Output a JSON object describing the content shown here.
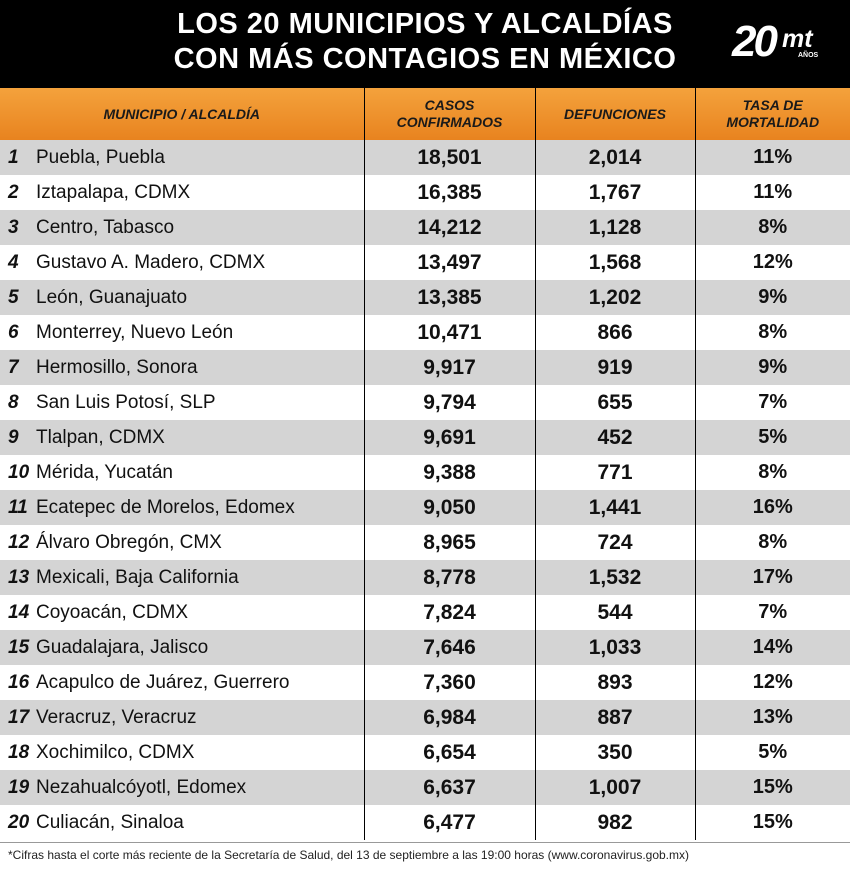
{
  "title_line1": "LOS 20 MUNICIPIOS Y ALCALDÍAS",
  "title_line2": "CON MÁS CONTAGIOS EN MÉXICO",
  "logo": {
    "number": "20",
    "brand": "mt",
    "subtext": "AÑOS"
  },
  "columns": {
    "municipio": "MUNICIPIO / ALCALDÍA",
    "casos_line1": "CASOS",
    "casos_line2": "CONFIRMADOS",
    "defunciones": "DEFUNCIONES",
    "tasa_line1": "TASA DE",
    "tasa_line2": "MORTALIDAD"
  },
  "rows": [
    {
      "rank": "1",
      "name": "Puebla, Puebla",
      "cases": "18,501",
      "deaths": "2,014",
      "rate": "11%"
    },
    {
      "rank": "2",
      "name": "Iztapalapa, CDMX",
      "cases": "16,385",
      "deaths": "1,767",
      "rate": "11%"
    },
    {
      "rank": "3",
      "name": "Centro, Tabasco",
      "cases": "14,212",
      "deaths": "1,128",
      "rate": "8%"
    },
    {
      "rank": "4",
      "name": "Gustavo A. Madero, CDMX",
      "cases": "13,497",
      "deaths": "1,568",
      "rate": "12%"
    },
    {
      "rank": "5",
      "name": "León, Guanajuato",
      "cases": "13,385",
      "deaths": "1,202",
      "rate": "9%"
    },
    {
      "rank": "6",
      "name": "Monterrey, Nuevo León",
      "cases": "10,471",
      "deaths": "866",
      "rate": "8%"
    },
    {
      "rank": "7",
      "name": "Hermosillo, Sonora",
      "cases": "9,917",
      "deaths": "919",
      "rate": "9%"
    },
    {
      "rank": "8",
      "name": "San Luis Potosí, SLP",
      "cases": "9,794",
      "deaths": "655",
      "rate": "7%"
    },
    {
      "rank": "9",
      "name": "Tlalpan, CDMX",
      "cases": "9,691",
      "deaths": "452",
      "rate": "5%"
    },
    {
      "rank": "10",
      "name": "Mérida, Yucatán",
      "cases": "9,388",
      "deaths": "771",
      "rate": "8%"
    },
    {
      "rank": "11",
      "name": "Ecatepec de Morelos, Edomex",
      "cases": "9,050",
      "deaths": "1,441",
      "rate": "16%"
    },
    {
      "rank": "12",
      "name": "Álvaro Obregón, CMX",
      "cases": "8,965",
      "deaths": "724",
      "rate": "8%"
    },
    {
      "rank": "13",
      "name": "Mexicali, Baja California",
      "cases": "8,778",
      "deaths": "1,532",
      "rate": "17%"
    },
    {
      "rank": "14",
      "name": "Coyoacán, CDMX",
      "cases": "7,824",
      "deaths": "544",
      "rate": "7%"
    },
    {
      "rank": "15",
      "name": "Guadalajara, Jalisco",
      "cases": "7,646",
      "deaths": "1,033",
      "rate": "14%"
    },
    {
      "rank": "16",
      "name": "Acapulco de Juárez, Guerrero",
      "cases": "7,360",
      "deaths": "893",
      "rate": "12%"
    },
    {
      "rank": "17",
      "name": "Veracruz, Veracruz",
      "cases": "6,984",
      "deaths": "887",
      "rate": "13%"
    },
    {
      "rank": "18",
      "name": "Xochimilco, CDMX",
      "cases": "6,654",
      "deaths": "350",
      "rate": "5%"
    },
    {
      "rank": "19",
      "name": "Nezahualcóyotl, Edomex",
      "cases": "6,637",
      "deaths": "1,007",
      "rate": "15%"
    },
    {
      "rank": "20",
      "name": "Culiacán, Sinaloa",
      "cases": "6,477",
      "deaths": "982",
      "rate": "15%"
    }
  ],
  "footer": "*Cifras hasta el corte más reciente de la Secretaría de Salud, del 13 de septiembre a las 19:00 horas (www.coronavirus.gob.mx)",
  "colors": {
    "header_bg": "#000000",
    "column_header": "#f0952e",
    "row_shade": "#d4d4d4"
  }
}
